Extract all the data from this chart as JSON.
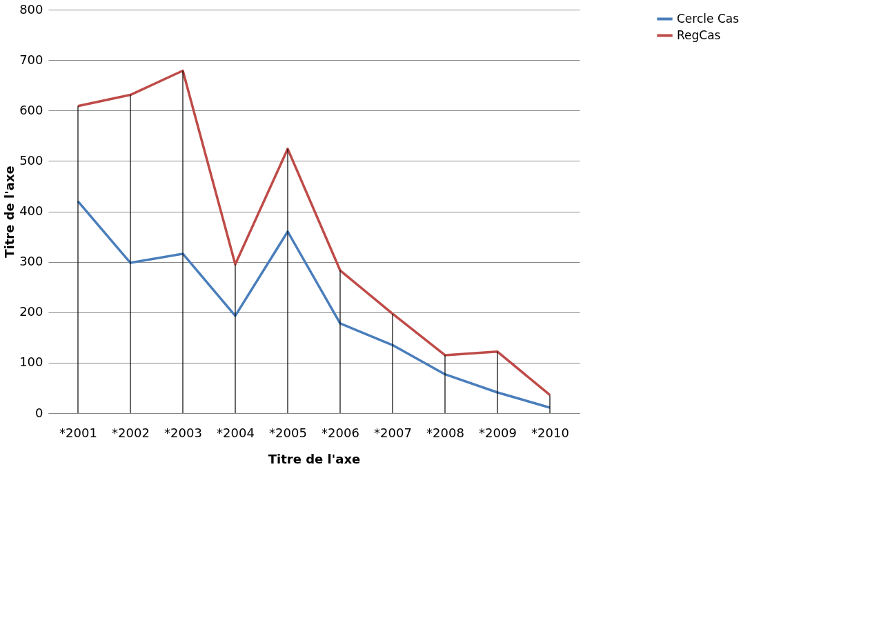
{
  "chart_data": {
    "type": "line",
    "xlabel": "Titre de l'axe",
    "ylabel": "Titre de l'axe",
    "categories": [
      "*2001",
      "*2002",
      "*2003",
      "*2004",
      "*2005",
      "*2006",
      "*2007",
      "*2008",
      "*2009",
      "*2010"
    ],
    "series": [
      {
        "name": "Cercle Cas",
        "color": "#4a7ebb",
        "values": [
          420,
          298,
          316,
          193,
          360,
          178,
          135,
          77,
          41,
          11
        ]
      },
      {
        "name": "RegCas",
        "color": "#be4b48",
        "values": [
          609,
          631,
          679,
          295,
          524,
          283,
          197,
          115,
          122,
          36
        ]
      },
      {
        "type": "bar",
        "color": "#000000",
        "values": [
          609,
          631,
          679,
          295,
          524,
          283,
          197,
          115,
          122,
          36
        ]
      }
    ],
    "ylim": [
      0,
      800
    ],
    "yticks": [
      0,
      100,
      200,
      300,
      400,
      500,
      600,
      700,
      800
    ],
    "grid": "y",
    "legend": "right",
    "marker": "none",
    "line_style": "solid"
  }
}
